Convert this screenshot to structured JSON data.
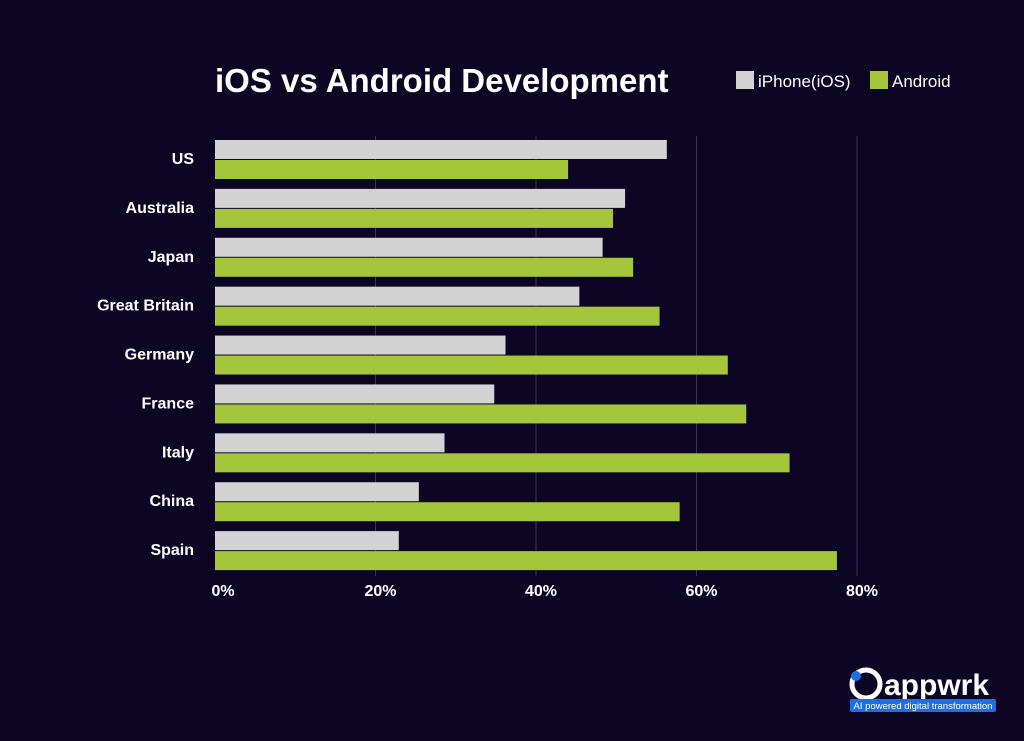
{
  "chart_data": {
    "type": "bar",
    "orientation": "horizontal",
    "title": "iOS vs Android Development",
    "categories": [
      "US",
      "Australia",
      "Japan",
      "Great Britain",
      "Germany",
      "France",
      "Italy",
      "China",
      "Spain"
    ],
    "series": [
      {
        "name": "iPhone(iOS)",
        "color": "#d3d3d3",
        "values": [
          56.3,
          51.1,
          48.3,
          45.4,
          36.2,
          34.8,
          28.6,
          25.4,
          22.9
        ]
      },
      {
        "name": "Android",
        "color": "#a4c63a",
        "values": [
          44.0,
          49.6,
          52.1,
          55.4,
          63.9,
          66.2,
          71.6,
          57.9,
          77.5
        ]
      }
    ],
    "xlim": [
      0,
      80
    ],
    "xticks": [
      0,
      20,
      40,
      60,
      80
    ],
    "xtick_labels": [
      "0%",
      "20%",
      "40%",
      "60%",
      "80%"
    ],
    "grid": true,
    "legend_position": "top-right"
  },
  "branding": {
    "logo_text": "appwrk",
    "tagline": "AI powered digital transformation",
    "accent_color": "#1e6fe6"
  }
}
